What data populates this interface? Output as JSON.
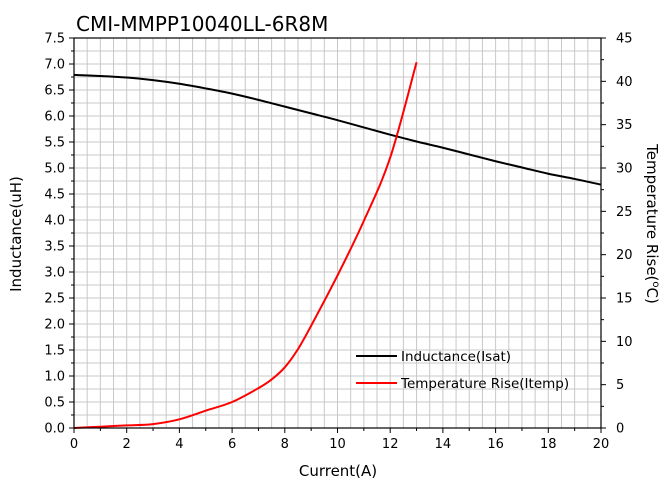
{
  "chart_data": {
    "type": "line",
    "title": "CMI-MMPP10040LL-6R8M",
    "xlabel": "Current(A)",
    "ylabel_left": "Inductance(uH)",
    "ylabel_right_prefix": "Temperature Rise(",
    "ylabel_right_degree": "o",
    "ylabel_right_suffix": "C)",
    "xlim": [
      0,
      20
    ],
    "ylim_left": [
      0,
      7.5
    ],
    "ylim_right": [
      0,
      45
    ],
    "x_ticks": [
      0,
      2,
      4,
      6,
      8,
      10,
      12,
      14,
      16,
      18,
      20
    ],
    "y_left_ticks": [
      0.0,
      0.5,
      1.0,
      1.5,
      2.0,
      2.5,
      3.0,
      3.5,
      4.0,
      4.5,
      5.0,
      5.5,
      6.0,
      6.5,
      7.0,
      7.5
    ],
    "y_right_ticks": [
      0,
      5,
      10,
      15,
      20,
      25,
      30,
      35,
      40,
      45
    ],
    "grid": true,
    "legend_position": "bottom-right",
    "series": [
      {
        "name": "Inductance(Isat)",
        "axis": "left",
        "color": "#000000",
        "x": [
          0,
          1,
          2,
          3,
          4,
          5,
          6,
          7,
          8,
          9,
          10,
          11,
          12,
          13,
          14,
          15,
          16,
          17,
          18,
          19,
          20
        ],
        "values": [
          6.79,
          6.77,
          6.74,
          6.69,
          6.62,
          6.53,
          6.43,
          6.31,
          6.18,
          6.05,
          5.92,
          5.78,
          5.64,
          5.51,
          5.39,
          5.26,
          5.13,
          5.01,
          4.89,
          4.79,
          4.68
        ]
      },
      {
        "name": "Temperature Rise(Itemp)",
        "axis": "right",
        "color": "#ff0000",
        "x": [
          0,
          1,
          2,
          3,
          4,
          5,
          6,
          7,
          7.5,
          8,
          8.5,
          9,
          10,
          11,
          12,
          13
        ],
        "values": [
          0,
          0.15,
          0.3,
          0.45,
          1.0,
          2.0,
          3.0,
          4.6,
          5.6,
          7.0,
          9.1,
          11.8,
          17.6,
          23.9,
          31.2,
          42.2
        ]
      }
    ]
  }
}
